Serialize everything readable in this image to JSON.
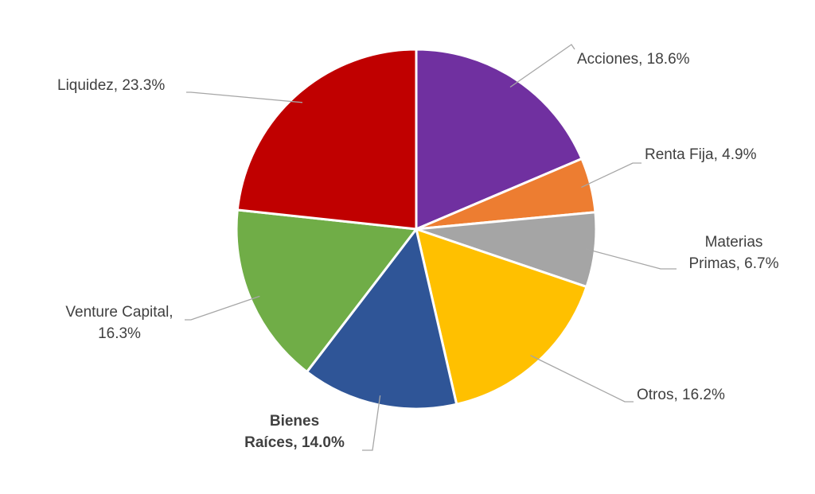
{
  "chart_data": {
    "type": "pie",
    "values": [
      18.6,
      4.9,
      6.7,
      16.2,
      14.0,
      16.3,
      23.3
    ],
    "value_labels": [
      [
        "Acciones, 18.6%"
      ],
      [
        "Renta Fija, 4.9%"
      ],
      [
        "Materias",
        "Primas, 6.7%"
      ],
      [
        "Otros, 16.2%"
      ],
      [
        "Bienes",
        "Raíces, 14.0%"
      ],
      [
        "Venture Capital,",
        "16.3%"
      ],
      [
        "Liquidez, 23.3%"
      ]
    ],
    "colors": [
      "#7030a0",
      "#ed7d31",
      "#a5a5a5",
      "#ffc000",
      "#2f5597",
      "#70ad47",
      "#c00000"
    ],
    "highlight": 4
  }
}
